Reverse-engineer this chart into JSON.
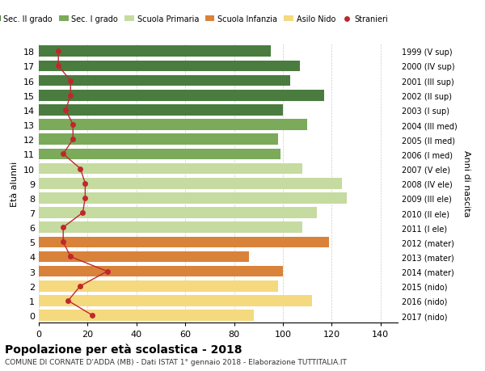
{
  "ages": [
    18,
    17,
    16,
    15,
    14,
    13,
    12,
    11,
    10,
    9,
    8,
    7,
    6,
    5,
    4,
    3,
    2,
    1,
    0
  ],
  "years": [
    "1999 (V sup)",
    "2000 (IV sup)",
    "2001 (III sup)",
    "2002 (II sup)",
    "2003 (I sup)",
    "2004 (III med)",
    "2005 (II med)",
    "2006 (I med)",
    "2007 (V ele)",
    "2008 (IV ele)",
    "2009 (III ele)",
    "2010 (II ele)",
    "2011 (I ele)",
    "2012 (mater)",
    "2013 (mater)",
    "2014 (mater)",
    "2015 (nido)",
    "2016 (nido)",
    "2017 (nido)"
  ],
  "bar_values": [
    95,
    107,
    103,
    117,
    100,
    110,
    98,
    99,
    108,
    124,
    126,
    114,
    108,
    119,
    86,
    100,
    98,
    112,
    88
  ],
  "bar_colors": [
    "#4a7c40",
    "#4a7c40",
    "#4a7c40",
    "#4a7c40",
    "#4a7c40",
    "#7aaa5a",
    "#7aaa5a",
    "#7aaa5a",
    "#c5dba0",
    "#c5dba0",
    "#c5dba0",
    "#c5dba0",
    "#c5dba0",
    "#d9823a",
    "#d9823a",
    "#d9823a",
    "#f5d97e",
    "#f5d97e",
    "#f5d97e"
  ],
  "stranieri_values": [
    8,
    8,
    13,
    13,
    11,
    14,
    14,
    10,
    17,
    19,
    19,
    18,
    10,
    10,
    13,
    28,
    17,
    12,
    22
  ],
  "legend_labels": [
    "Sec. II grado",
    "Sec. I grado",
    "Scuola Primaria",
    "Scuola Infanzia",
    "Asilo Nido",
    "Stranieri"
  ],
  "legend_colors": [
    "#4a7c40",
    "#7aaa5a",
    "#c5dba0",
    "#d9823a",
    "#f5d97e",
    "#c0272d"
  ],
  "ylabel": "Età alunni",
  "right_label": "Anni di nascita",
  "title": "Popolazione per età scolastica - 2018",
  "subtitle": "COMUNE DI CORNATE D'ADDA (MB) - Dati ISTAT 1° gennaio 2018 - Elaborazione TUTTITALIA.IT",
  "xlim": [
    0,
    147
  ],
  "xticks": [
    0,
    20,
    40,
    60,
    80,
    100,
    120,
    140
  ],
  "background_color": "#ffffff",
  "stranieri_color": "#c0272d"
}
